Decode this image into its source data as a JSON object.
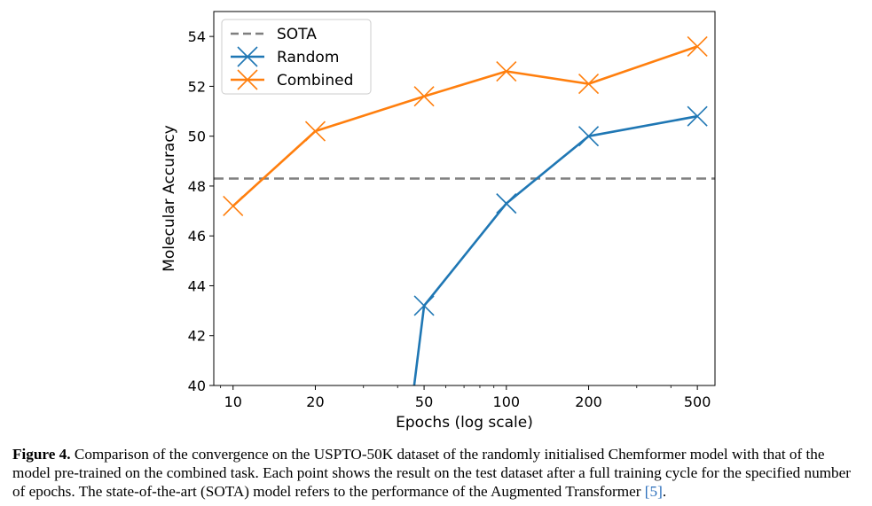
{
  "chart_data": {
    "type": "line",
    "xscale": "log",
    "xlabel": "Epochs (log scale)",
    "ylabel": "Molecular Accuracy",
    "xlim": [
      8.5,
      580
    ],
    "ylim": [
      40,
      55
    ],
    "xticks": [
      10,
      20,
      50,
      100,
      200,
      500
    ],
    "xtick_labels": [
      "10",
      "20",
      "50",
      "100",
      "200",
      "500"
    ],
    "yticks": [
      40,
      42,
      44,
      46,
      48,
      50,
      52,
      54
    ],
    "ytick_labels": [
      "40",
      "42",
      "44",
      "46",
      "48",
      "50",
      "52",
      "54"
    ],
    "legend_position": "top-left",
    "grid": false,
    "sota": {
      "name": "SOTA",
      "value": 48.3,
      "color": "#7f7f7f"
    },
    "series": [
      {
        "name": "Random",
        "color": "#1f77b4",
        "x": [
          46,
          50,
          100,
          200,
          500
        ],
        "values": [
          40,
          43.2,
          47.3,
          50.0,
          50.8
        ],
        "markers": [
          false,
          true,
          true,
          true,
          true
        ]
      },
      {
        "name": "Combined",
        "color": "#ff7f0e",
        "x": [
          10,
          20,
          50,
          100,
          200,
          500
        ],
        "values": [
          47.2,
          50.2,
          51.6,
          52.6,
          52.1,
          53.6
        ],
        "markers": [
          true,
          true,
          true,
          true,
          true,
          true
        ]
      }
    ]
  },
  "caption": {
    "label": "Figure 4.",
    "text": " Comparison of the convergence on the USPTO-50K dataset of the randomly initialised Chemformer model with that of the model pre-trained on the combined task. Each point shows the result on the test dataset after a full training cycle for the specified number of epochs. The state-of-the-art (SOTA) model refers to the performance of the Augmented Transformer ",
    "ref": "[5]",
    "end": "."
  }
}
